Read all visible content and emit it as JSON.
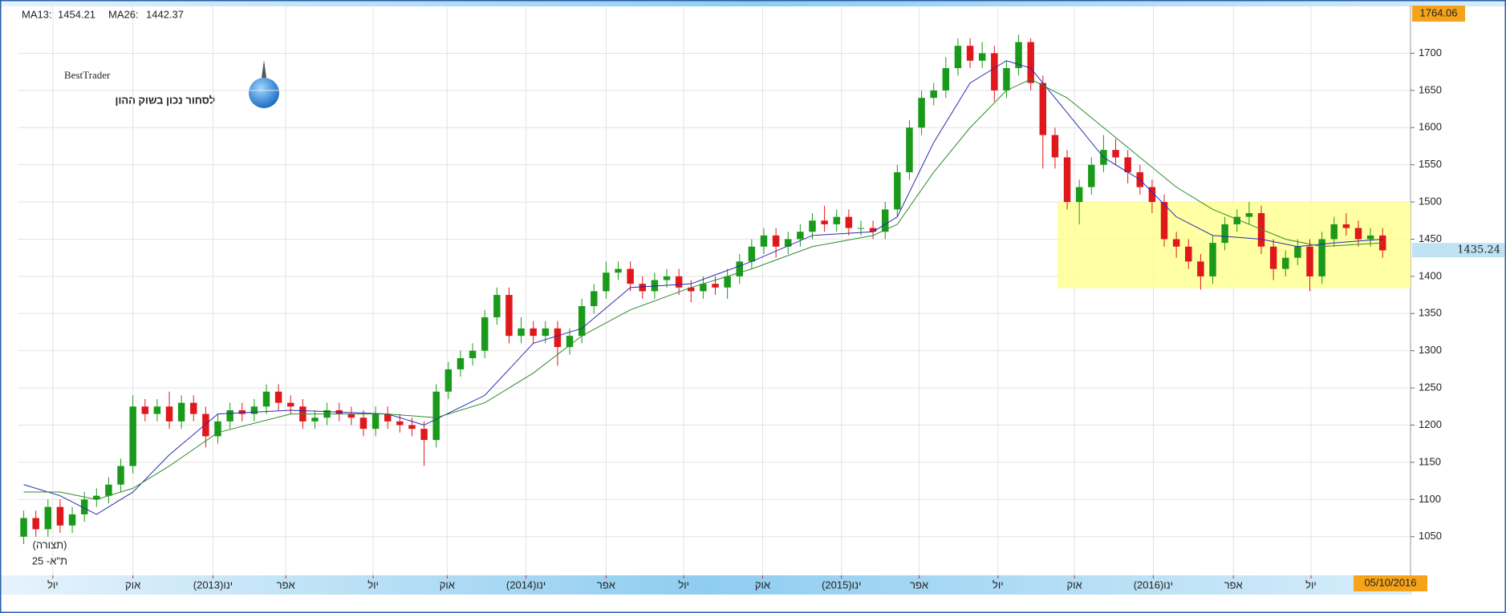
{
  "chart_data": {
    "type": "candlestick",
    "x": [
      0,
      1,
      2,
      3,
      4,
      5,
      6,
      7,
      8,
      9,
      10,
      11,
      12,
      13,
      14,
      15,
      16,
      17,
      18,
      19,
      20,
      21,
      22,
      23,
      24,
      25,
      26,
      27,
      28,
      29,
      30,
      31,
      32,
      33,
      34,
      35,
      36,
      37,
      38,
      39,
      40,
      41,
      42,
      43,
      44,
      45,
      46,
      47,
      48,
      49,
      50,
      51,
      52,
      53,
      54,
      55,
      56,
      57,
      58,
      59,
      60,
      61,
      62,
      63,
      64,
      65,
      66,
      67,
      68,
      69,
      70,
      71,
      72,
      73,
      74,
      75,
      76,
      77,
      78,
      79,
      80,
      81,
      82,
      83,
      84,
      85,
      86,
      87,
      88,
      89,
      90,
      91,
      92,
      93,
      94,
      95,
      96,
      97,
      98,
      99,
      100,
      101,
      102,
      103,
      104,
      105,
      106,
      107,
      108,
      109,
      110,
      111,
      112
    ],
    "open": [
      1050,
      1075,
      1060,
      1090,
      1065,
      1080,
      1100,
      1105,
      1120,
      1145,
      1225,
      1215,
      1225,
      1205,
      1230,
      1215,
      1185,
      1205,
      1220,
      1215,
      1225,
      1245,
      1230,
      1225,
      1205,
      1210,
      1220,
      1215,
      1210,
      1195,
      1215,
      1205,
      1200,
      1195,
      1180,
      1245,
      1275,
      1290,
      1300,
      1345,
      1375,
      1320,
      1330,
      1320,
      1330,
      1305,
      1320,
      1360,
      1380,
      1405,
      1410,
      1390,
      1380,
      1395,
      1400,
      1385,
      1380,
      1390,
      1385,
      1400,
      1420,
      1440,
      1455,
      1440,
      1450,
      1460,
      1475,
      1470,
      1480,
      1465,
      1465,
      1460,
      1490,
      1540,
      1600,
      1640,
      1650,
      1680,
      1710,
      1690,
      1700,
      1650,
      1680,
      1715,
      1660,
      1590,
      1560,
      1500,
      1520,
      1550,
      1570,
      1560,
      1540,
      1520,
      1500,
      1450,
      1440,
      1420,
      1400,
      1445,
      1470,
      1480,
      1485,
      1440,
      1410,
      1425,
      1440,
      1400,
      1450,
      1470,
      1465,
      1450,
      1455
    ],
    "high": [
      1085,
      1085,
      1100,
      1100,
      1090,
      1110,
      1115,
      1130,
      1155,
      1240,
      1235,
      1235,
      1245,
      1240,
      1240,
      1225,
      1215,
      1230,
      1230,
      1235,
      1255,
      1255,
      1240,
      1235,
      1220,
      1230,
      1230,
      1225,
      1220,
      1225,
      1225,
      1215,
      1210,
      1205,
      1255,
      1285,
      1300,
      1310,
      1355,
      1385,
      1385,
      1345,
      1340,
      1340,
      1340,
      1330,
      1370,
      1390,
      1420,
      1420,
      1420,
      1400,
      1405,
      1410,
      1410,
      1395,
      1400,
      1400,
      1410,
      1430,
      1450,
      1465,
      1465,
      1460,
      1470,
      1485,
      1495,
      1490,
      1490,
      1475,
      1475,
      1500,
      1550,
      1610,
      1650,
      1660,
      1695,
      1720,
      1720,
      1715,
      1710,
      1690,
      1725,
      1720,
      1670,
      1600,
      1570,
      1530,
      1560,
      1590,
      1585,
      1570,
      1550,
      1530,
      1510,
      1460,
      1450,
      1430,
      1455,
      1480,
      1490,
      1500,
      1495,
      1450,
      1435,
      1450,
      1450,
      1460,
      1480,
      1485,
      1475,
      1465,
      1465
    ],
    "low": [
      1040,
      1050,
      1050,
      1055,
      1055,
      1070,
      1090,
      1095,
      1110,
      1135,
      1205,
      1205,
      1195,
      1195,
      1205,
      1170,
      1175,
      1195,
      1205,
      1205,
      1215,
      1220,
      1215,
      1195,
      1195,
      1200,
      1205,
      1200,
      1185,
      1185,
      1195,
      1190,
      1185,
      1145,
      1170,
      1235,
      1265,
      1280,
      1290,
      1335,
      1310,
      1310,
      1310,
      1310,
      1280,
      1295,
      1310,
      1350,
      1370,
      1395,
      1380,
      1370,
      1370,
      1385,
      1375,
      1365,
      1370,
      1375,
      1370,
      1390,
      1410,
      1430,
      1425,
      1430,
      1440,
      1450,
      1460,
      1460,
      1455,
      1455,
      1450,
      1450,
      1480,
      1530,
      1590,
      1630,
      1640,
      1670,
      1680,
      1680,
      1635,
      1640,
      1670,
      1650,
      1545,
      1545,
      1490,
      1470,
      1510,
      1540,
      1550,
      1525,
      1510,
      1485,
      1440,
      1425,
      1410,
      1382,
      1390,
      1435,
      1460,
      1470,
      1430,
      1395,
      1400,
      1415,
      1380,
      1390,
      1440,
      1455,
      1440,
      1440,
      1425
    ],
    "close": [
      1075,
      1060,
      1090,
      1065,
      1080,
      1100,
      1105,
      1120,
      1145,
      1225,
      1215,
      1225,
      1205,
      1230,
      1215,
      1185,
      1205,
      1220,
      1215,
      1225,
      1245,
      1230,
      1225,
      1205,
      1210,
      1220,
      1215,
      1210,
      1195,
      1215,
      1205,
      1200,
      1195,
      1180,
      1245,
      1275,
      1290,
      1300,
      1345,
      1375,
      1320,
      1330,
      1320,
      1330,
      1305,
      1320,
      1360,
      1380,
      1405,
      1410,
      1390,
      1380,
      1395,
      1400,
      1385,
      1380,
      1390,
      1385,
      1400,
      1420,
      1440,
      1455,
      1440,
      1450,
      1460,
      1475,
      1470,
      1480,
      1465,
      1465,
      1460,
      1490,
      1540,
      1600,
      1640,
      1650,
      1680,
      1710,
      1690,
      1700,
      1650,
      1680,
      1715,
      1660,
      1590,
      1560,
      1500,
      1520,
      1550,
      1570,
      1560,
      1540,
      1520,
      1500,
      1450,
      1440,
      1420,
      1400,
      1445,
      1470,
      1480,
      1485,
      1440,
      1410,
      1425,
      1440,
      1400,
      1450,
      1470,
      1465,
      1450,
      1455,
      1435
    ],
    "up_color": "#1a9a1a",
    "down_color": "#e0171b",
    "xlim": [
      -0.5,
      114.3
    ],
    "ylim": [
      998,
      1764.06
    ],
    "yticks": [
      1050,
      1100,
      1150,
      1200,
      1250,
      1300,
      1350,
      1400,
      1450,
      1500,
      1550,
      1600,
      1650,
      1700
    ],
    "xticks": [
      {
        "value": 2.4,
        "label": "יול"
      },
      {
        "value": 9.0,
        "label": "אוק"
      },
      {
        "value": 15.6,
        "label": "ינו(2013)"
      },
      {
        "value": 21.6,
        "label": "אפר"
      },
      {
        "value": 28.8,
        "label": "יול"
      },
      {
        "value": 34.9,
        "label": "אוק"
      },
      {
        "value": 41.4,
        "label": "ינו(2014)"
      },
      {
        "value": 48.0,
        "label": "אפר"
      },
      {
        "value": 54.4,
        "label": "יול"
      },
      {
        "value": 60.9,
        "label": "אוק"
      },
      {
        "value": 67.4,
        "label": "ינו(2015)"
      },
      {
        "value": 73.8,
        "label": "אפר"
      },
      {
        "value": 80.3,
        "label": "יול"
      },
      {
        "value": 86.6,
        "label": "אוק"
      },
      {
        "value": 93.1,
        "label": "ינו(2016)"
      },
      {
        "value": 99.7,
        "label": "אפר"
      },
      {
        "value": 106.1,
        "label": "יול"
      }
    ],
    "grid": true,
    "series": [
      {
        "name": "MA13:",
        "color": "#2b2bb0",
        "last_value": 1454.21,
        "x": [
          0,
          3,
          6,
          9,
          12,
          16,
          22,
          30,
          33,
          38,
          42,
          46,
          50,
          55,
          60,
          65,
          70,
          72,
          75,
          78,
          81,
          83,
          86,
          89,
          92,
          95,
          98,
          102,
          105,
          108,
          112
        ],
        "values": [
          1120,
          1105,
          1080,
          1110,
          1160,
          1215,
          1220,
          1215,
          1200,
          1240,
          1310,
          1330,
          1385,
          1390,
          1420,
          1455,
          1460,
          1480,
          1580,
          1660,
          1690,
          1680,
          1620,
          1560,
          1530,
          1480,
          1455,
          1450,
          1440,
          1445,
          1450
        ]
      },
      {
        "name": "MA26:",
        "color": "#2e8b2e",
        "last_value": 1442.37,
        "x": [
          0,
          3,
          6,
          9,
          12,
          16,
          22,
          30,
          34,
          38,
          42,
          46,
          50,
          55,
          60,
          65,
          70,
          72,
          75,
          78,
          81,
          83,
          86,
          89,
          92,
          95,
          98,
          101,
          104,
          107,
          112
        ],
        "values": [
          1110,
          1110,
          1100,
          1115,
          1145,
          1190,
          1215,
          1215,
          1210,
          1230,
          1270,
          1320,
          1355,
          1385,
          1410,
          1440,
          1455,
          1470,
          1540,
          1600,
          1650,
          1665,
          1640,
          1600,
          1560,
          1520,
          1490,
          1470,
          1450,
          1440,
          1445
        ]
      }
    ],
    "last_price": 1435.24,
    "last_date": "05/10/2016",
    "highlight": {
      "x": [
        85.2,
        114.3
      ],
      "y": [
        1384,
        1500
      ],
      "color": "#ffff8c"
    },
    "annotations": [
      "(תצורה)",
      "ת\"א- 25"
    ],
    "logo": {
      "word1": "Best",
      "word2": "Trader",
      "tagline": "לסחור נכון בשוק ההון"
    }
  }
}
